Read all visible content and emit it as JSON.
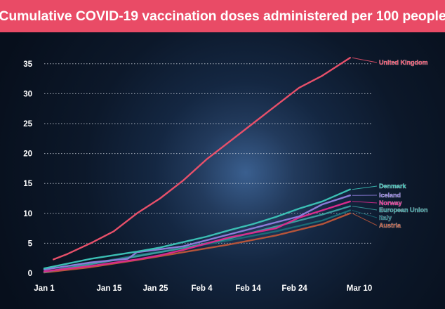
{
  "title": "Cumulative COVID-19 vaccination doses administered per 100 people",
  "colors": {
    "title_bg": "#e94b66",
    "United Kingdom": "#e8506a",
    "Denmark": "#3bbfb4",
    "Iceland": "#8c7bd8",
    "Norway": "#d92b8c",
    "European Union": "#3a9a9c",
    "Italy": "#1a6b76",
    "Austria": "#b5543a"
  },
  "chart_data": {
    "type": "line",
    "title": "Cumulative COVID-19 vaccination doses administered per 100 people",
    "xlabel": "",
    "ylabel": "",
    "x_ticks": [
      "Jan 1",
      "Jan 15",
      "Jan 25",
      "Feb 4",
      "Feb 14",
      "Feb 24",
      "Mar 10"
    ],
    "x_tick_days": [
      0,
      14,
      24,
      34,
      44,
      54,
      68
    ],
    "y_ticks": [
      0,
      5,
      10,
      15,
      20,
      25,
      30,
      35
    ],
    "ylim": [
      0,
      37
    ],
    "xlim": [
      "Jan 1",
      "Mar 10"
    ],
    "grid": "horizontal dotted",
    "legend": "right, labels at line ends",
    "series": [
      {
        "name": "United Kingdom",
        "x": [
          2,
          5,
          10,
          15,
          20,
          25,
          30,
          35,
          40,
          45,
          50,
          55,
          60,
          66
        ],
        "values": [
          2.3,
          3.2,
          5.0,
          7.0,
          10.0,
          12.5,
          15.5,
          19.0,
          22.0,
          25.0,
          28.0,
          31.0,
          33.0,
          36.0
        ]
      },
      {
        "name": "Denmark",
        "x": [
          0,
          5,
          10,
          15,
          20,
          25,
          30,
          35,
          40,
          45,
          50,
          55,
          60,
          66
        ],
        "values": [
          0.8,
          1.6,
          2.4,
          3.0,
          3.6,
          4.3,
          5.2,
          6.1,
          7.2,
          8.2,
          9.4,
          10.8,
          12.0,
          14.0
        ]
      },
      {
        "name": "Iceland",
        "x": [
          0,
          10,
          18,
          20,
          30,
          40,
          50,
          55,
          60,
          66
        ],
        "values": [
          0.6,
          1.8,
          2.4,
          3.5,
          4.5,
          6.5,
          8.5,
          9.5,
          11.5,
          13.0
        ]
      },
      {
        "name": "Norway",
        "x": [
          0,
          10,
          20,
          25,
          30,
          40,
          50,
          55,
          60,
          66
        ],
        "values": [
          0.3,
          1.2,
          2.3,
          3.0,
          3.9,
          6.0,
          7.5,
          9.3,
          10.5,
          12.0
        ]
      },
      {
        "name": "European Union",
        "x": [
          0,
          10,
          20,
          30,
          40,
          50,
          60,
          66
        ],
        "values": [
          0.2,
          1.5,
          2.8,
          4.2,
          5.8,
          7.8,
          9.8,
          11.2
        ]
      },
      {
        "name": "Italy",
        "x": [
          0,
          10,
          20,
          30,
          40,
          50,
          60,
          66
        ],
        "values": [
          0.2,
          1.6,
          3.0,
          4.2,
          5.5,
          7.0,
          8.8,
          10.5
        ]
      },
      {
        "name": "Austria",
        "x": [
          0,
          10,
          20,
          30,
          40,
          50,
          60,
          66
        ],
        "values": [
          0.1,
          1.0,
          2.2,
          3.5,
          4.8,
          6.3,
          8.2,
          10.0
        ]
      }
    ]
  }
}
